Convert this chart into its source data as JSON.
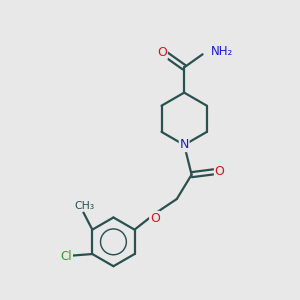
{
  "bg_color": "#e8e8e8",
  "bond_color": "#2a5050",
  "N_color": "#1a1acc",
  "O_color": "#cc1a1a",
  "Cl_color": "#22aa22",
  "lw": 1.6,
  "dpi": 100,
  "xlim": [
    0,
    10
  ],
  "ylim": [
    0,
    10
  ]
}
